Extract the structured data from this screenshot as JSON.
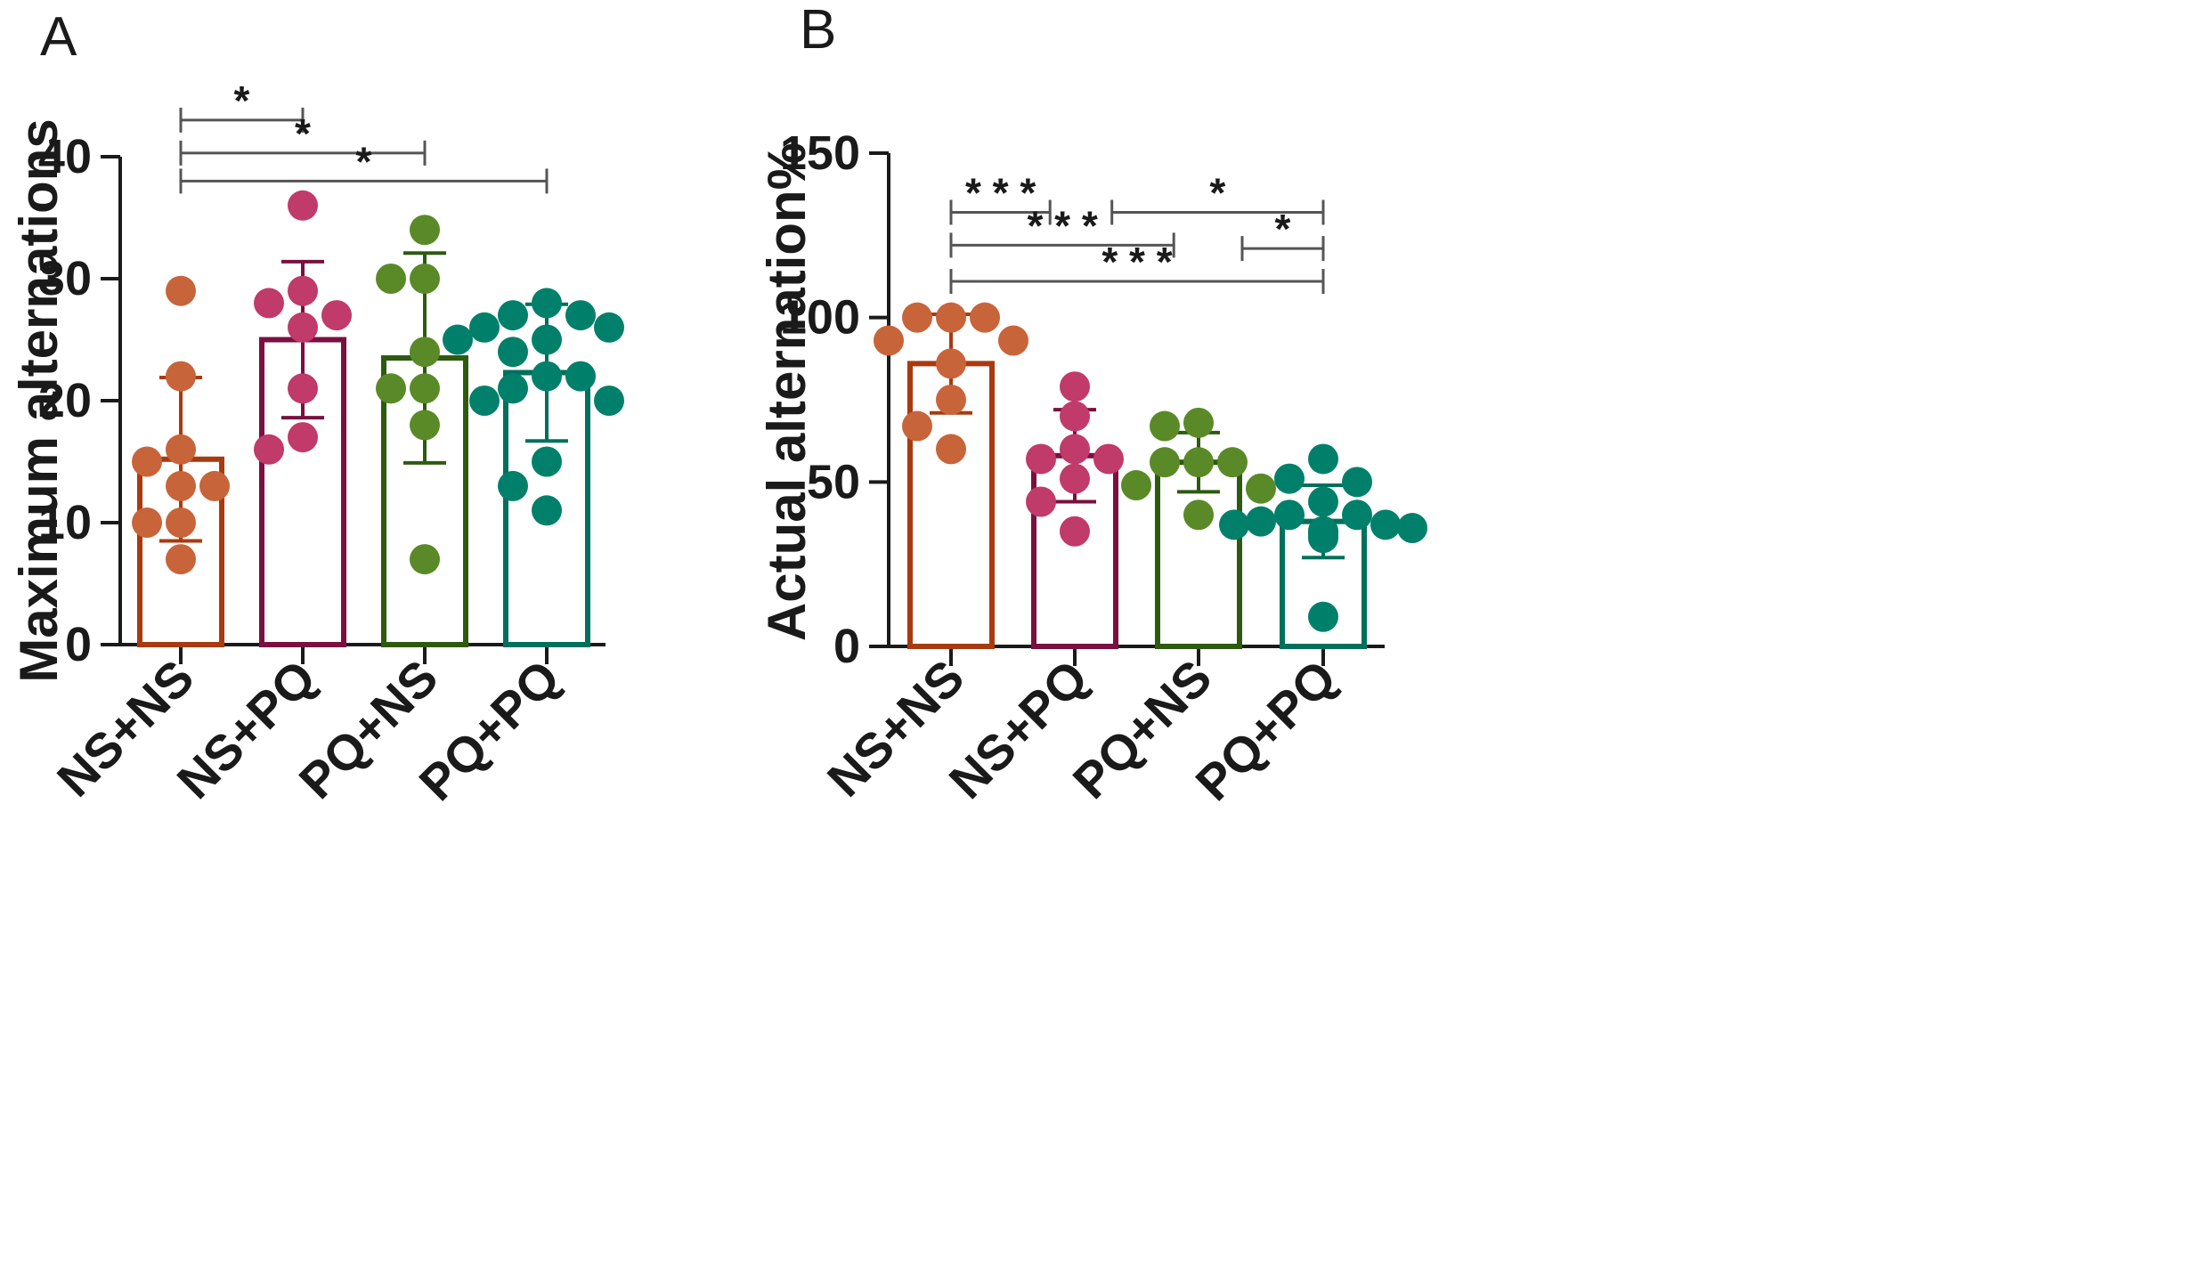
{
  "chart_data": [
    {
      "type": "bar",
      "panel_label": "A",
      "ylabel": "Maximum alternations",
      "ylim": [
        0,
        40
      ],
      "yticks": [
        0,
        10,
        20,
        30,
        40
      ],
      "yticks_text": [
        "0",
        "10",
        "20",
        "30",
        "40"
      ],
      "categories": [
        "NS+NS",
        "NS+PQ",
        "PQ+NS",
        "PQ+PQ"
      ],
      "bar_colors": [
        "#a83a10",
        "#7a1040",
        "#2e5a10",
        "#00705c"
      ],
      "point_colors": [
        "#c8643a",
        "#c03a6a",
        "#5a8a28",
        "#00806a"
      ],
      "means": [
        15.2,
        25,
        23.5,
        22.3
      ],
      "sd": [
        6.7,
        6.4,
        8.6,
        5.6
      ],
      "points": [
        [
          29,
          22,
          16,
          15,
          13,
          13,
          10,
          10,
          7
        ],
        [
          36,
          29,
          28,
          27,
          26,
          21,
          17,
          16
        ],
        [
          34,
          30,
          30,
          24,
          21,
          21,
          18,
          7
        ],
        [
          28,
          27,
          27,
          26,
          26,
          25,
          25,
          24,
          22,
          22,
          21,
          20,
          20,
          15,
          13,
          11
        ]
      ],
      "significance": [
        {
          "from": 0,
          "to": 1,
          "label": "*",
          "y": 43
        },
        {
          "from": 0,
          "to": 2,
          "label": "*",
          "y": 40.3
        },
        {
          "from": 0,
          "to": 3,
          "label": "*",
          "y": 38
        }
      ]
    },
    {
      "type": "bar",
      "panel_label": "B",
      "ylabel": "Actual alternation%",
      "ylim": [
        0,
        150
      ],
      "yticks": [
        0,
        50,
        100,
        150
      ],
      "yticks_text": [
        "0",
        "50",
        "100",
        "150"
      ],
      "categories": [
        "NS+NS",
        "NS+PQ",
        "PQ+NS",
        "PQ+PQ"
      ],
      "bar_colors": [
        "#a83a10",
        "#7a1040",
        "#2e5a10",
        "#00705c"
      ],
      "point_colors": [
        "#c8643a",
        "#c03a6a",
        "#5a8a28",
        "#00806a"
      ],
      "means": [
        86,
        58,
        56,
        38
      ],
      "sd": [
        15,
        14,
        9,
        11
      ],
      "points": [
        [
          100,
          100,
          100,
          93,
          93,
          86,
          75,
          67,
          60
        ],
        [
          79,
          70,
          60,
          57,
          57,
          51,
          44,
          35
        ],
        [
          68,
          67,
          56,
          56,
          56,
          49,
          48,
          40
        ],
        [
          57,
          51,
          50,
          44,
          40,
          40,
          38,
          37,
          37,
          36,
          35,
          35,
          34,
          33,
          9
        ]
      ],
      "significance": [
        {
          "from": 0,
          "to": 0.8,
          "label": "* * *",
          "y": 132
        },
        {
          "from": 1.3,
          "to": 3,
          "label": "*",
          "y": 132
        },
        {
          "from": 0,
          "to": 1.8,
          "label": "* * *",
          "y": 122
        },
        {
          "from": 2.35,
          "to": 3,
          "label": "*",
          "y": 121
        },
        {
          "from": 0,
          "to": 3,
          "label": "* * *",
          "y": 111
        }
      ]
    }
  ]
}
